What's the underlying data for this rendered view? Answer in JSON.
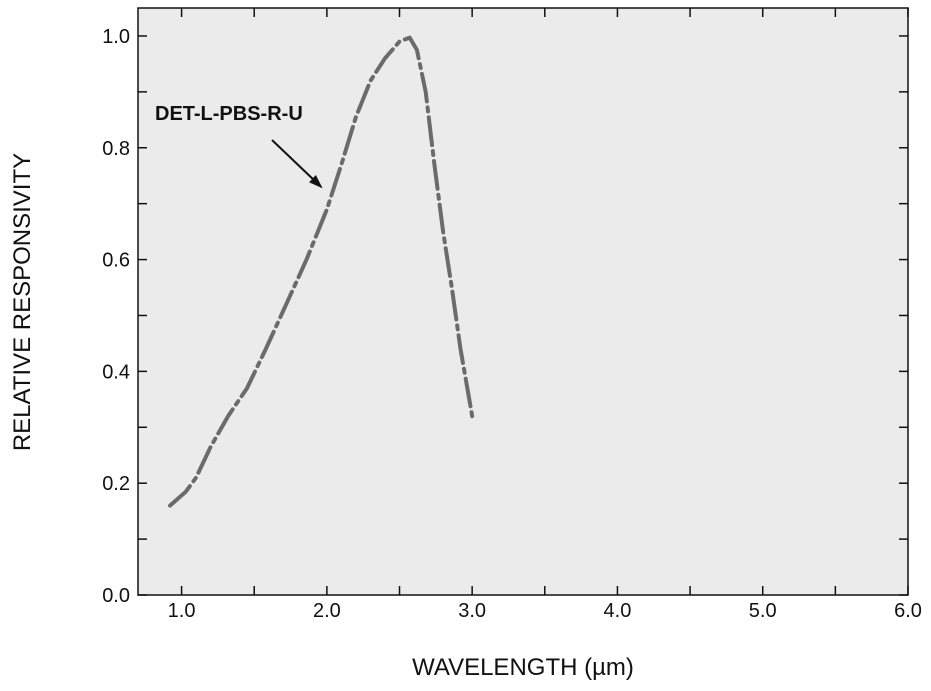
{
  "chart_data": {
    "type": "line",
    "xlabel": "WAVELENGTH (µm)",
    "ylabel": "RELATIVE RESPONSIVITY",
    "xlim": [
      0.7,
      6.0
    ],
    "ylim": [
      0.0,
      1.05
    ],
    "x_ticks": [
      1.0,
      2.0,
      3.0,
      4.0,
      5.0,
      6.0
    ],
    "x_tick_labels": [
      "1.0",
      "2.0",
      "3.0",
      "4.0",
      "5.0",
      "6.0"
    ],
    "y_ticks": [
      0.0,
      0.2,
      0.4,
      0.6,
      0.8,
      1.0
    ],
    "y_tick_labels": [
      "0.0",
      "0.2",
      "0.4",
      "0.6",
      "0.8",
      "1.0"
    ],
    "grid": false,
    "series": [
      {
        "name": "DET-L-PBS-R-U",
        "line_style": "dash-dot",
        "color": "#6b6b6b",
        "points": [
          [
            0.92,
            0.16
          ],
          [
            1.03,
            0.185
          ],
          [
            1.1,
            0.21
          ],
          [
            1.2,
            0.265
          ],
          [
            1.32,
            0.32
          ],
          [
            1.45,
            0.37
          ],
          [
            1.58,
            0.44
          ],
          [
            1.72,
            0.52
          ],
          [
            1.86,
            0.6
          ],
          [
            2.0,
            0.69
          ],
          [
            2.1,
            0.77
          ],
          [
            2.2,
            0.855
          ],
          [
            2.3,
            0.92
          ],
          [
            2.4,
            0.96
          ],
          [
            2.5,
            0.99
          ],
          [
            2.57,
            0.997
          ],
          [
            2.62,
            0.975
          ],
          [
            2.68,
            0.9
          ],
          [
            2.74,
            0.77
          ],
          [
            2.8,
            0.65
          ],
          [
            2.86,
            0.55
          ],
          [
            2.92,
            0.44
          ],
          [
            3.0,
            0.32
          ]
        ]
      }
    ],
    "annotations": [
      {
        "text": "DET-L-PBS-R-U",
        "points_to": [
          1.96,
          0.73
        ]
      }
    ],
    "colors": {
      "plot_background": "#ebebeb",
      "axis": "#111111",
      "curve": "#6b6b6b"
    }
  }
}
